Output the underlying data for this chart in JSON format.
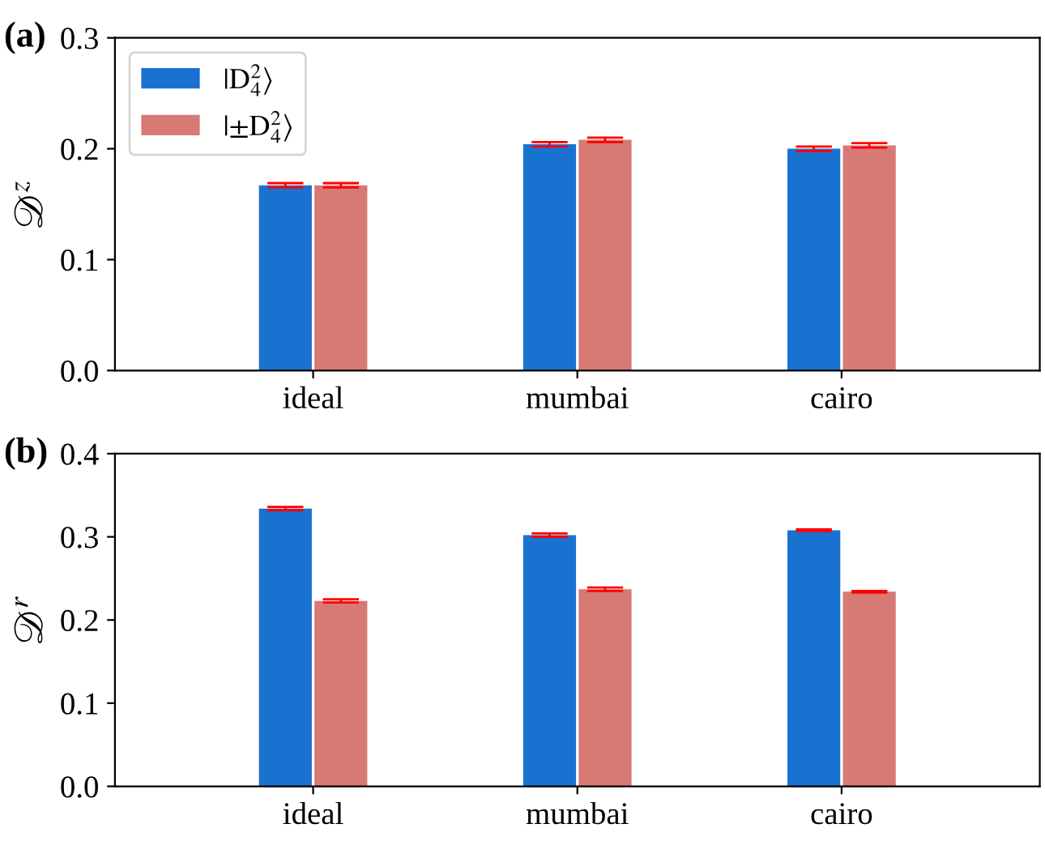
{
  "chart_data": [
    {
      "type": "bar",
      "title": "(a)",
      "ylabel": "𝒟$^{z}$",
      "categories": [
        "ideal",
        "mumbai",
        "cairo"
      ],
      "ylim": [
        0,
        0.3
      ],
      "yticks": [
        {
          "value": 0,
          "label": "0.0"
        },
        0.1,
        0.2,
        0.3
      ],
      "legend": "top left",
      "grid": false,
      "series": [
        {
          "name": "|D$^{2}$$_{4}$⟩",
          "color": "#1a72d0",
          "values": [
            0.167,
            0.204,
            0.2
          ],
          "errors": [
            0.002,
            0.002,
            0.002
          ]
        },
        {
          "name": "|±D$^{2}$$_{4}$⟩",
          "color": "#d77975",
          "values": [
            0.167,
            0.208,
            0.203
          ],
          "errors": [
            0.002,
            0.002,
            0.002
          ]
        }
      ]
    },
    {
      "type": "bar",
      "title": "(b)",
      "ylabel": "𝒟$^{r}$",
      "categories": [
        "ideal",
        "mumbai",
        "cairo"
      ],
      "ylim": [
        0,
        0.4
      ],
      "yticks": [
        {
          "value": 0,
          "label": "0.0"
        },
        0.1,
        0.2,
        0.3,
        0.4
      ],
      "grid": false,
      "series": [
        {
          "color": "#1a72d0",
          "values": [
            0.334,
            0.302,
            0.308
          ],
          "errors": [
            0.002,
            0.002,
            0.001
          ]
        },
        {
          "color": "#d77975",
          "values": [
            0.223,
            0.237,
            0.234
          ],
          "errors": [
            0.002,
            0.002,
            0.001
          ]
        }
      ]
    }
  ]
}
